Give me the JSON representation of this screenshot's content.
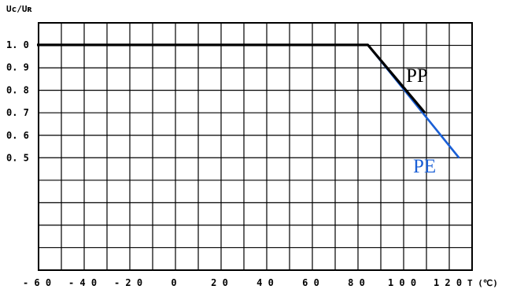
{
  "chart_data": {
    "type": "line",
    "ylabel": "Uc/Uʀ",
    "xlabel": "T (℃)",
    "x_ticks": [
      "-60",
      "-40",
      "-20",
      "0",
      "20",
      "40",
      "60",
      "80",
      "100",
      "120"
    ],
    "y_ticks": [
      "1.0",
      "0.9",
      "0.8",
      "0.7",
      "0.6",
      "0.5"
    ],
    "xlim": [
      -65,
      130
    ],
    "ylim": [
      0.0,
      1.05
    ],
    "grid": true,
    "series": [
      {
        "name": "PP",
        "color": "#000000",
        "x": [
          -60,
          85,
          110
        ],
        "y": [
          1.0,
          1.0,
          0.7
        ]
      },
      {
        "name": "PE",
        "color": "#1a5fd6",
        "x": [
          -60,
          85,
          125
        ],
        "y": [
          1.0,
          1.0,
          0.5
        ]
      }
    ]
  }
}
